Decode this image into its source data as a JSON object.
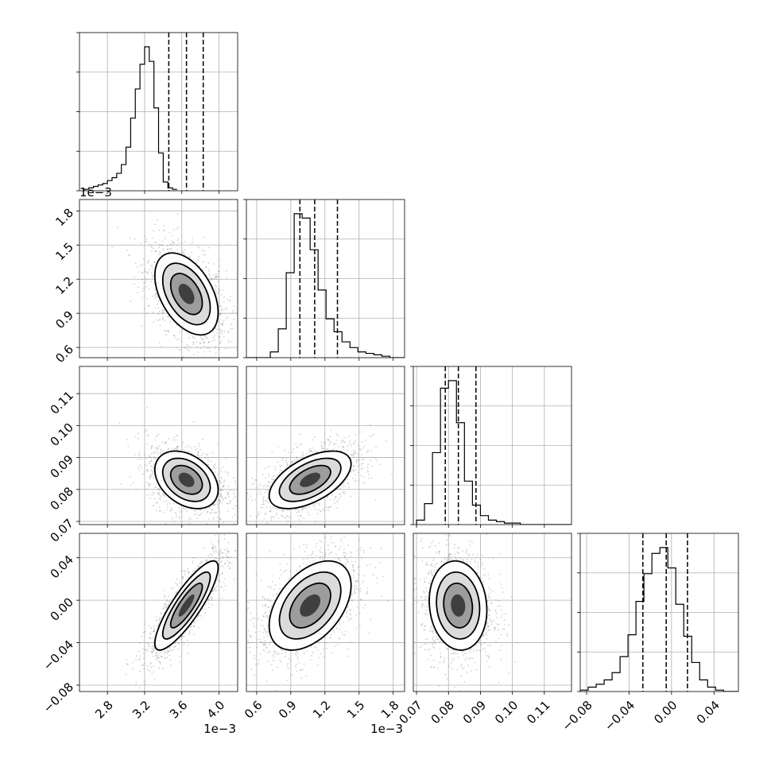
{
  "chart_data": {
    "type": "corner",
    "colors": {
      "points": "#7f7f7f",
      "contour": "#000000",
      "quantile_line": "#000000",
      "grid": "#b0b0b0"
    },
    "params": [
      {
        "range": [
          0.0025,
          0.0042
        ],
        "ticks": [
          0.0028,
          0.0032,
          0.0036,
          0.004
        ],
        "tick_labels": [
          "2.8",
          "3.2",
          "3.6",
          "4.0"
        ],
        "offset_label": "1e−3",
        "quantiles": [
          0.00346,
          0.00365,
          0.00383
        ],
        "center": 0.00365,
        "sd": 0.00017,
        "hist": {
          "edges_start": 0.00255,
          "bin_width": 5e-05,
          "counts": [
            1,
            2,
            3,
            4,
            5,
            7,
            9,
            12,
            18,
            30,
            50,
            70,
            87,
            99,
            89,
            57,
            26,
            6,
            2,
            1
          ]
        }
      },
      {
        "range": [
          0.00051,
          0.0019
        ],
        "ticks": [
          0.0006,
          0.0009,
          0.0012,
          0.0015,
          0.0018
        ],
        "tick_labels": [
          "0.6",
          "0.9",
          "1.2",
          "1.5",
          "1.8"
        ],
        "offset_label": "1e−3",
        "quantiles": [
          0.00098,
          0.00111,
          0.00131
        ],
        "center": 0.00107,
        "sd": 0.00018,
        "hist": {
          "edges_start": 0.00051,
          "bin_width": 7e-05,
          "counts": [
            0,
            0,
            0,
            4,
            20,
            59,
            100,
            97,
            75,
            47,
            27,
            18,
            11,
            7,
            4,
            3,
            2,
            1,
            0,
            0
          ]
        }
      },
      {
        "range": [
          0.069,
          0.1185
        ],
        "ticks": [
          0.07,
          0.08,
          0.09,
          0.1,
          0.11
        ],
        "tick_labels": [
          "0.07",
          "0.08",
          "0.09",
          "0.10",
          "0.11"
        ],
        "offset_label": "",
        "quantiles": [
          0.079,
          0.0831,
          0.0886
        ],
        "center": 0.083,
        "sd": 0.0045,
        "hist": {
          "edges_start": 0.07,
          "bin_width": 0.0025,
          "counts": [
            3,
            14,
            48,
            91,
            96,
            68,
            29,
            13,
            6,
            3,
            2,
            1,
            1,
            0,
            0,
            0,
            0,
            0,
            0,
            0
          ]
        }
      },
      {
        "range": [
          -0.086,
          0.063
        ],
        "ticks": [
          -0.08,
          -0.04,
          0.0,
          0.04
        ],
        "tick_labels": [
          "−0.08",
          "−0.04",
          "0.00",
          "0.04"
        ],
        "offset_label": "",
        "quantiles": [
          -0.027,
          -0.005,
          0.015
        ],
        "center": -0.005,
        "sd": 0.021,
        "hist": {
          "edges_start": -0.086,
          "bin_width": 0.0075,
          "counts": [
            1,
            3,
            5,
            8,
            13,
            24,
            39,
            62,
            81,
            95,
            99,
            85,
            60,
            38,
            20,
            8,
            3,
            1,
            0,
            0
          ]
        }
      }
    ],
    "correlations": {
      "1-0": -0.45,
      "2-0": -0.35,
      "2-1": 0.55,
      "3-0": 0.85,
      "3-1": 0.45,
      "3-2": -0.1
    },
    "grid": true
  }
}
